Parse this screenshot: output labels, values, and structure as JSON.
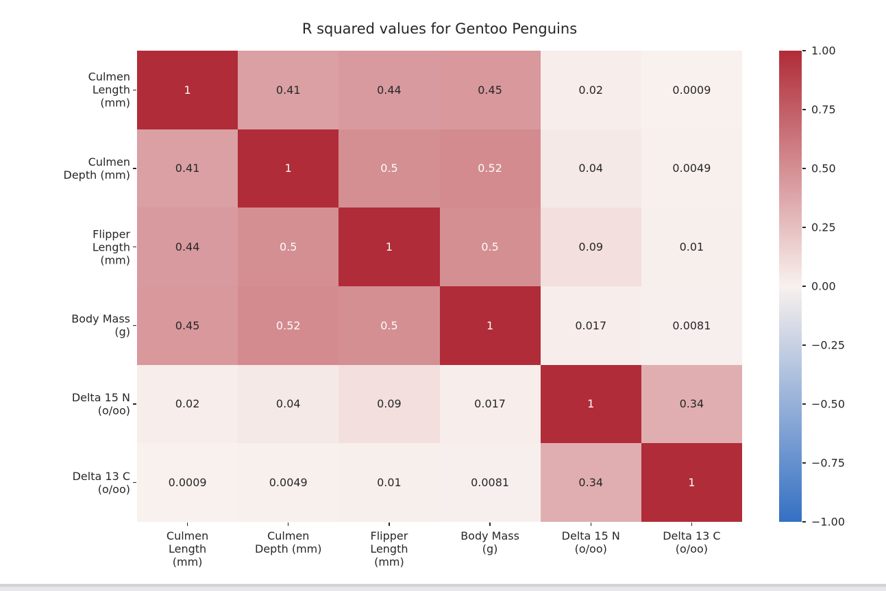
{
  "chart_data": {
    "type": "heatmap",
    "title": "R squared values for Gentoo Penguins",
    "variables": [
      "Culmen Length (mm)",
      "Culmen Depth (mm)",
      "Flipper Length (mm)",
      "Body Mass (g)",
      "Delta 15 N (o/oo)",
      "Delta 13 C (o/oo)"
    ],
    "y_tick_labels": [
      [
        "Culmen",
        "Length",
        "(mm)"
      ],
      [
        "Culmen",
        "Depth (mm)"
      ],
      [
        "Flipper",
        "Length",
        "(mm)"
      ],
      [
        "Body Mass",
        "(g)"
      ],
      [
        "Delta 15 N",
        "(o/oo)"
      ],
      [
        "Delta 13 C",
        "(o/oo)"
      ]
    ],
    "x_tick_labels": [
      [
        "Culmen",
        "Length",
        "(mm)"
      ],
      [
        "Culmen",
        "Depth (mm)"
      ],
      [
        "Flipper",
        "Length",
        "(mm)"
      ],
      [
        "Body Mass",
        "(g)"
      ],
      [
        "Delta 15 N",
        "(o/oo)"
      ],
      [
        "Delta 13 C",
        "(o/oo)"
      ]
    ],
    "matrix": [
      [
        1,
        0.41,
        0.44,
        0.45,
        0.02,
        0.0009
      ],
      [
        0.41,
        1,
        0.5,
        0.52,
        0.04,
        0.0049
      ],
      [
        0.44,
        0.5,
        1,
        0.5,
        0.09,
        0.01
      ],
      [
        0.45,
        0.52,
        0.5,
        1,
        0.017,
        0.0081
      ],
      [
        0.02,
        0.04,
        0.09,
        0.017,
        1,
        0.34
      ],
      [
        0.0009,
        0.0049,
        0.01,
        0.0081,
        0.34,
        1
      ]
    ],
    "cell_labels": [
      [
        "1",
        "0.41",
        "0.44",
        "0.45",
        "0.02",
        "0.0009"
      ],
      [
        "0.41",
        "1",
        "0.5",
        "0.52",
        "0.04",
        "0.0049"
      ],
      [
        "0.44",
        "0.5",
        "1",
        "0.5",
        "0.09",
        "0.01"
      ],
      [
        "0.45",
        "0.52",
        "0.5",
        "1",
        "0.017",
        "0.0081"
      ],
      [
        "0.02",
        "0.04",
        "0.09",
        "0.017",
        "1",
        "0.34"
      ],
      [
        "0.0009",
        "0.0049",
        "0.01",
        "0.0081",
        "0.34",
        "1"
      ]
    ],
    "colorbar": {
      "position": "right",
      "vmin": -1,
      "vmax": 1,
      "tick_labels": [
        "1.00",
        "0.75",
        "0.50",
        "0.25",
        "0.00",
        "−0.25",
        "−0.50",
        "−0.75",
        "−1.00"
      ]
    },
    "colors": {
      "positive_max": "#b02c38",
      "zero": "#f8f1ee",
      "negative_min": "#3470c3",
      "annotation_dark": "#262626",
      "annotation_light": "#fcfcfc"
    },
    "annot_white_threshold": 0.5,
    "grid": false,
    "legend": "colorbar-right"
  }
}
